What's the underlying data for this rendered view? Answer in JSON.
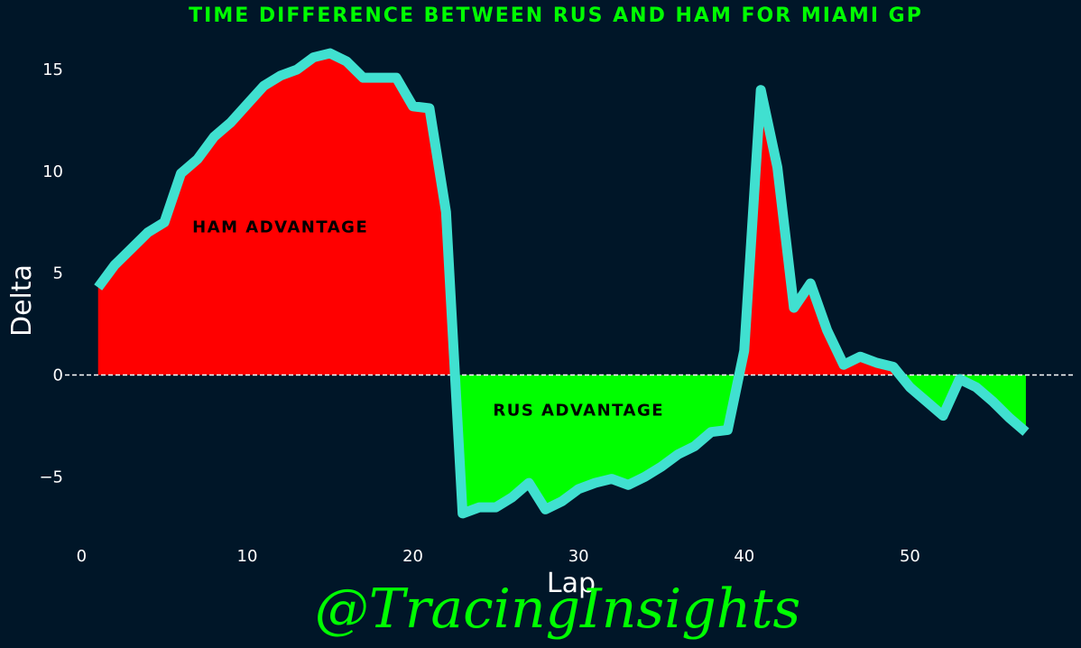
{
  "chart_data": {
    "type": "area",
    "title": "TIME DIFFERENCE BETWEEN RUS AND HAM FOR MIAMI GP",
    "xlabel": "Lap",
    "ylabel": "Delta",
    "xlim": [
      -1,
      60
    ],
    "ylim": [
      -8,
      17
    ],
    "x_ticks": [
      0,
      10,
      20,
      30,
      40,
      50
    ],
    "y_ticks": [
      -5,
      0,
      5,
      10,
      15
    ],
    "grid": false,
    "zero_line": true,
    "series": [
      {
        "x": [
          1,
          2,
          3,
          4,
          5,
          6,
          7,
          8,
          9,
          10,
          11,
          12,
          13,
          14,
          15,
          16,
          17,
          18,
          19,
          20,
          21,
          22,
          23,
          24,
          25,
          26,
          27,
          28,
          29,
          30,
          31,
          32,
          33,
          34,
          35,
          36,
          37,
          38,
          39,
          40,
          41,
          42,
          43,
          44,
          45,
          46,
          47,
          48,
          49,
          50,
          51,
          52,
          53,
          54,
          55,
          56,
          57
        ],
        "y": [
          4.3,
          5.4,
          6.2,
          7.0,
          7.5,
          9.9,
          10.6,
          11.7,
          12.4,
          13.3,
          14.2,
          14.7,
          15.0,
          15.6,
          15.8,
          15.4,
          14.6,
          14.6,
          14.6,
          13.2,
          13.1,
          8.0,
          -6.8,
          -6.5,
          -6.5,
          -6.0,
          -5.3,
          -6.6,
          -6.2,
          -5.6,
          -5.3,
          -5.1,
          -5.4,
          -5.0,
          -4.5,
          -3.9,
          -3.5,
          -2.8,
          -2.7,
          1.2,
          14.0,
          10.2,
          3.3,
          4.5,
          2.2,
          0.5,
          0.9,
          0.6,
          0.4,
          -0.6,
          -1.3,
          -2.0,
          -0.2,
          -0.6,
          -1.3,
          -2.1,
          -2.8
        ]
      }
    ],
    "annotations": [
      {
        "text": "HAM ADVANTAGE",
        "x": 12,
        "y": 7.0
      },
      {
        "text": "RUS ADVANTAGE",
        "x": 30,
        "y": -2.0
      }
    ],
    "colors": {
      "background": "#001628",
      "title": "#00ff00",
      "line": "#40e0d0",
      "positive_fill": "#ff0000",
      "negative_fill": "#00ff00",
      "tick": "#ffffff",
      "zero_line": "#ffffff",
      "annotation": "#000000",
      "watermark": "#00ff00"
    }
  },
  "watermark": "@TracingInsights"
}
